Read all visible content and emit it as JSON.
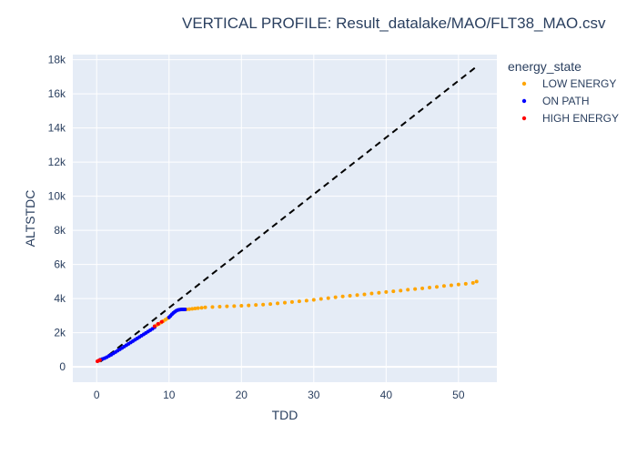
{
  "chart_data": {
    "type": "scatter",
    "title": "VERTICAL PROFILE: Result_datalake/MAO/FLT38_MAO.csv",
    "xlabel": "TDD",
    "ylabel": "ALTSTDC",
    "xlim": [
      -3.3,
      55.3
    ],
    "ylim": [
      -900,
      18300
    ],
    "xticks": [
      0,
      10,
      20,
      30,
      40,
      50
    ],
    "xtick_labels": [
      "0",
      "10",
      "20",
      "30",
      "40",
      "50"
    ],
    "yticks": [
      0,
      2000,
      4000,
      6000,
      8000,
      10000,
      12000,
      14000,
      16000,
      18000
    ],
    "ytick_labels": [
      "0",
      "2k",
      "4k",
      "6k",
      "8k",
      "10k",
      "12k",
      "14k",
      "16k",
      "18k"
    ],
    "grid": true,
    "legend": {
      "title": "energy_state",
      "placement": "right"
    },
    "reference_line": {
      "style": "dashed",
      "color": "#000000",
      "x": [
        0.5,
        52.5
      ],
      "y": [
        300,
        17600
      ]
    },
    "series": [
      {
        "name": "LOW ENERGY",
        "color": "#ffa500",
        "x": [
          8.3,
          8.6,
          8.9,
          9.2,
          9.5,
          9.8,
          12.4,
          12.8,
          13.2,
          13.6,
          14.0,
          14.5,
          15.0,
          16.0,
          17.0,
          18.0,
          19.0,
          20.0,
          21.0,
          22.0,
          23.0,
          24.0,
          25.0,
          26.0,
          27.0,
          28.0,
          29.0,
          30.0,
          31.0,
          32.0,
          33.0,
          34.0,
          35.0,
          36.0,
          37.0,
          38.0,
          39.0,
          40.0,
          41.0,
          42.0,
          43.0,
          44.0,
          45.0,
          46.0,
          47.0,
          48.0,
          49.0,
          50.0,
          51.0,
          52.0,
          52.5
        ],
        "y": [
          2450,
          2520,
          2600,
          2680,
          2760,
          2850,
          3370,
          3380,
          3400,
          3420,
          3440,
          3460,
          3490,
          3510,
          3530,
          3550,
          3560,
          3580,
          3600,
          3630,
          3650,
          3680,
          3720,
          3760,
          3800,
          3840,
          3880,
          3930,
          3980,
          4030,
          4080,
          4130,
          4170,
          4210,
          4250,
          4300,
          4340,
          4390,
          4430,
          4470,
          4520,
          4560,
          4600,
          4650,
          4690,
          4740,
          4780,
          4830,
          4870,
          4920,
          5000
        ]
      },
      {
        "name": "ON PATH",
        "color": "#0000ff",
        "x": [
          0.5,
          0.8,
          1.1,
          1.4,
          1.7,
          2.0,
          2.3,
          2.6,
          2.9,
          3.2,
          3.5,
          3.8,
          4.1,
          4.4,
          4.7,
          5.0,
          5.3,
          5.6,
          5.9,
          6.2,
          6.5,
          6.8,
          7.1,
          7.4,
          7.7,
          8.0,
          10.0,
          10.2,
          10.4,
          10.6,
          10.8,
          11.0,
          11.2,
          11.4,
          11.6,
          11.8,
          12.0,
          12.2
        ],
        "y": [
          420,
          460,
          510,
          570,
          640,
          710,
          790,
          870,
          950,
          1030,
          1110,
          1190,
          1270,
          1350,
          1430,
          1510,
          1590,
          1670,
          1750,
          1830,
          1910,
          1990,
          2070,
          2150,
          2230,
          2320,
          2900,
          2990,
          3080,
          3160,
          3230,
          3290,
          3330,
          3350,
          3360,
          3370,
          3370,
          3370
        ]
      },
      {
        "name": "HIGH ENERGY",
        "color": "#ff0000",
        "x": [
          0.1,
          0.25,
          0.45,
          8.0,
          8.5,
          9.0
        ],
        "y": [
          330,
          360,
          400,
          2380,
          2520,
          2640
        ]
      }
    ]
  }
}
